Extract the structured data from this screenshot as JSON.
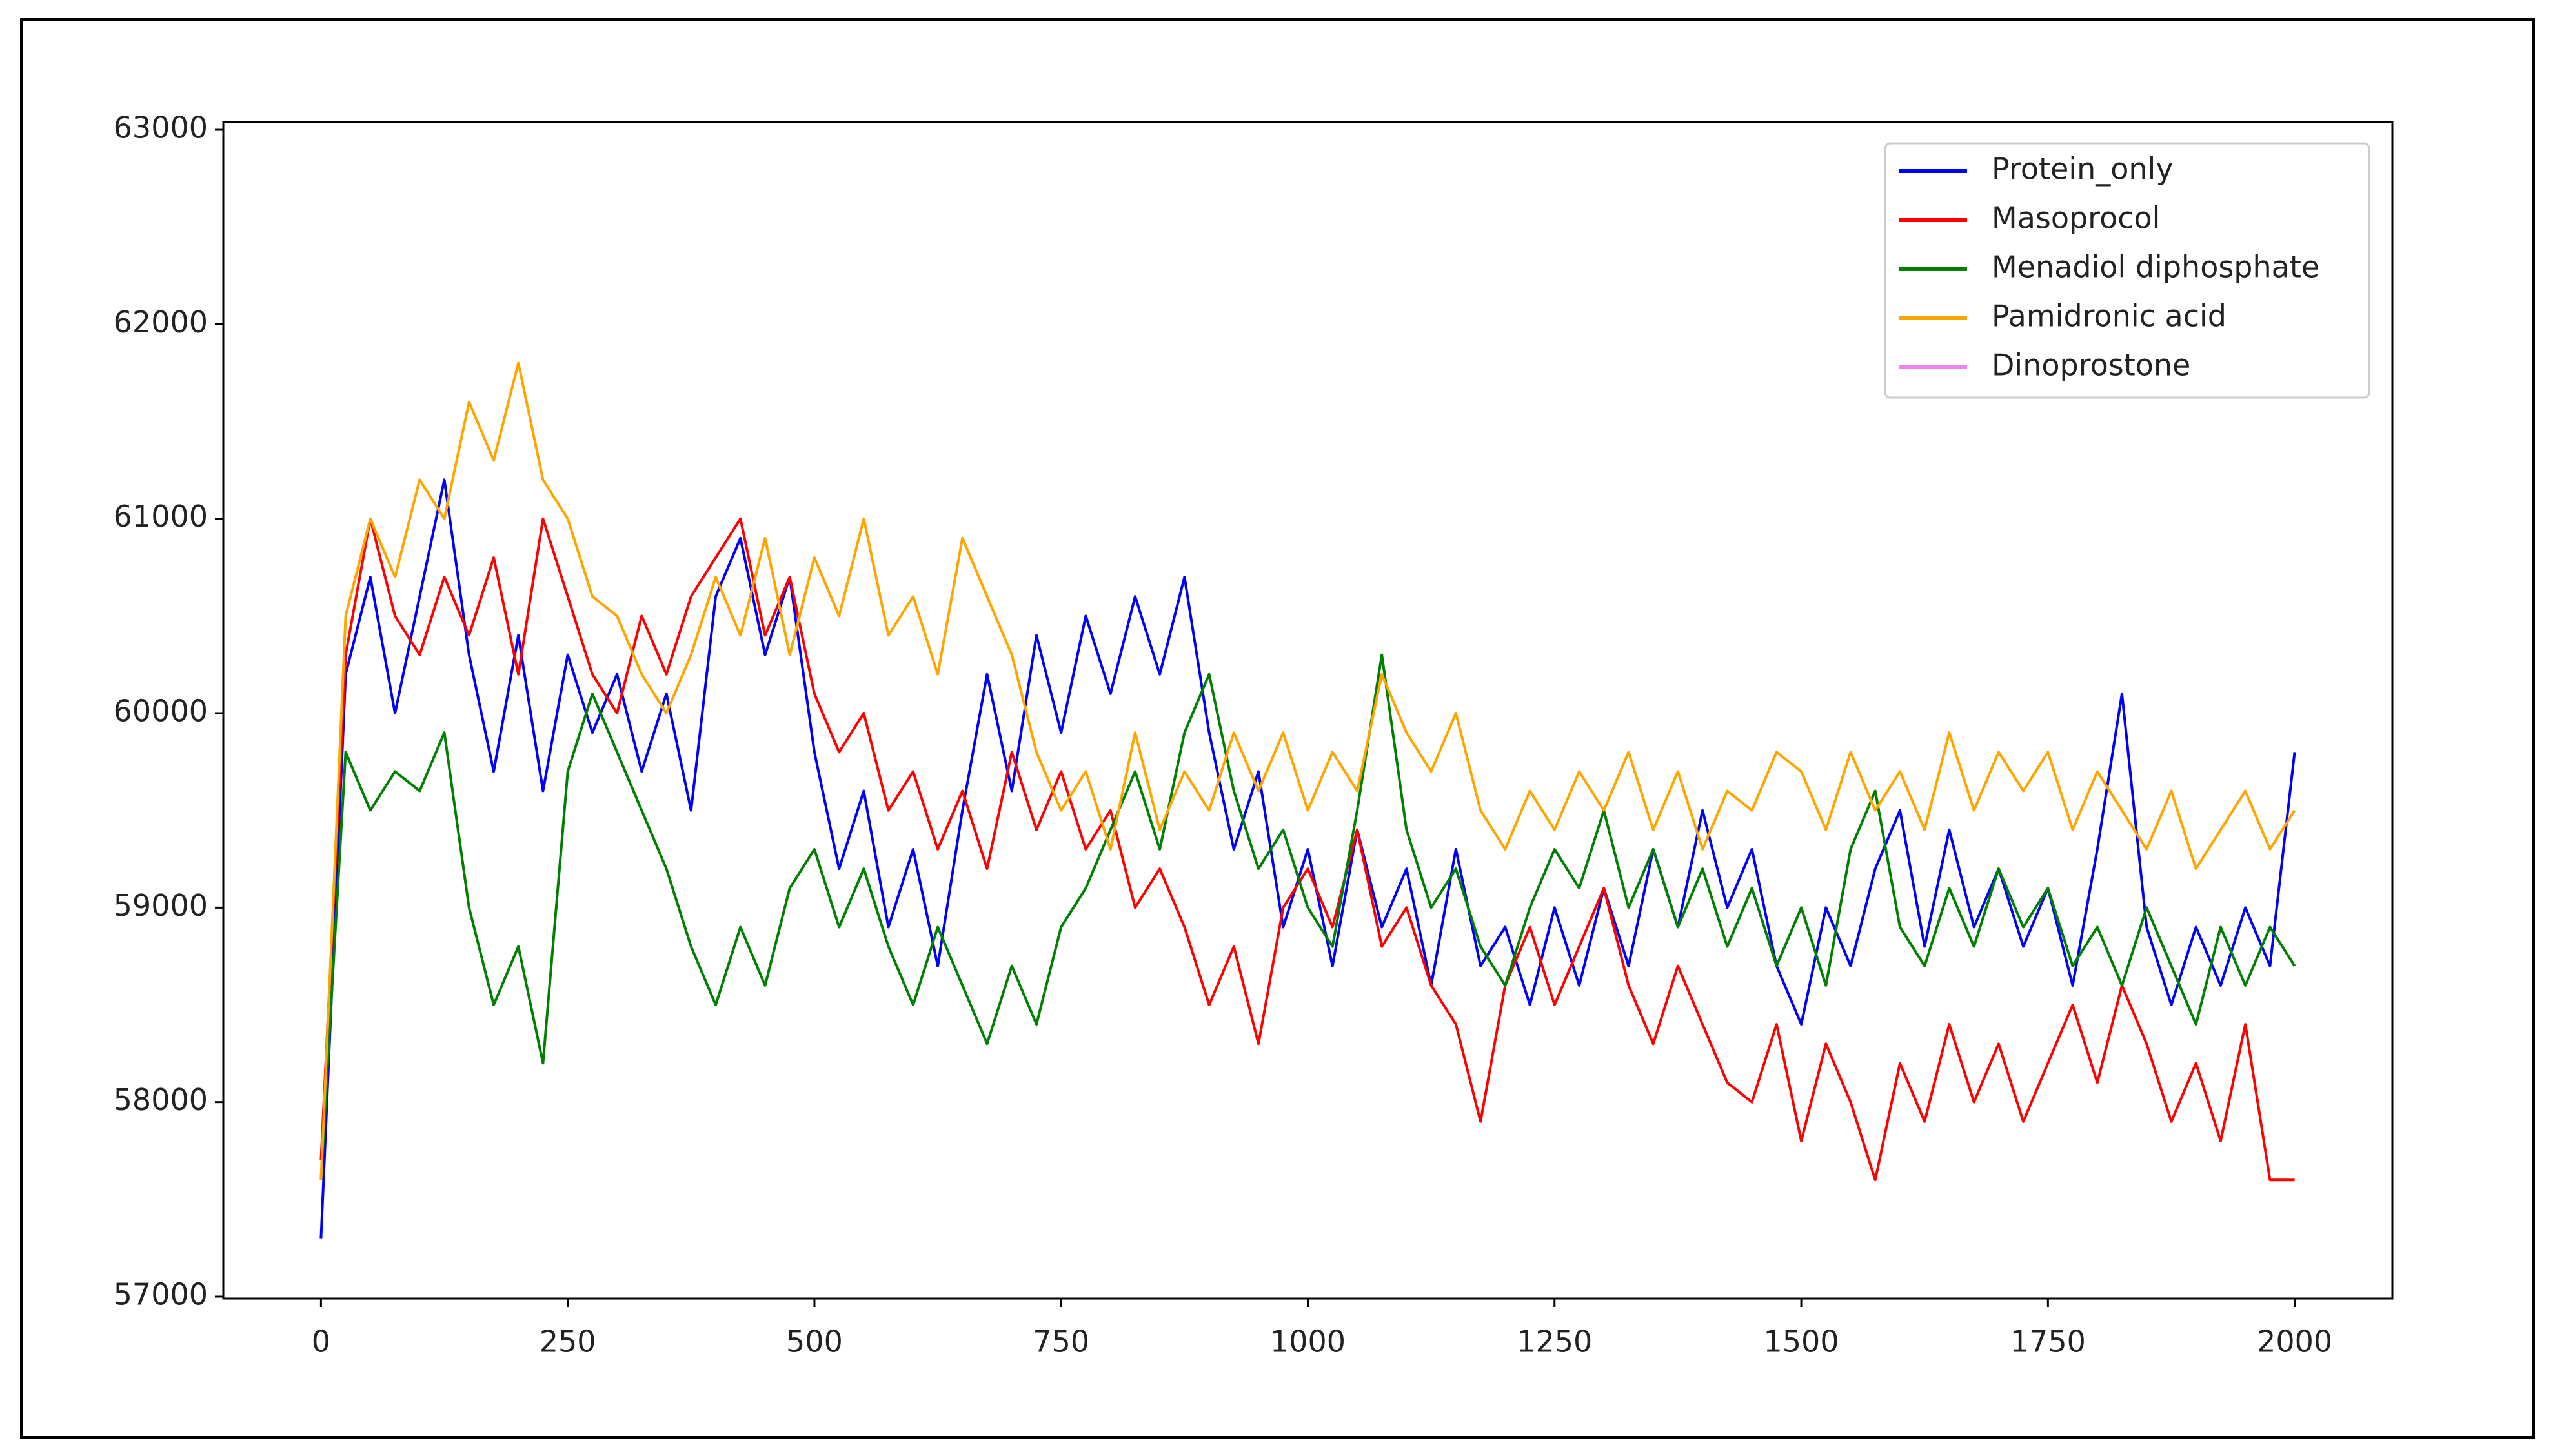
{
  "chart_data": {
    "type": "line",
    "x": [
      0,
      25,
      50,
      75,
      100,
      125,
      150,
      175,
      200,
      225,
      250,
      275,
      300,
      325,
      350,
      375,
      400,
      425,
      450,
      475,
      500,
      525,
      550,
      575,
      600,
      625,
      650,
      675,
      700,
      725,
      750,
      775,
      800,
      825,
      850,
      875,
      900,
      925,
      950,
      975,
      1000,
      1025,
      1050,
      1075,
      1100,
      1125,
      1150,
      1175,
      1200,
      1225,
      1250,
      1275,
      1300,
      1325,
      1350,
      1375,
      1400,
      1425,
      1450,
      1475,
      1500,
      1525,
      1550,
      1575,
      1600,
      1625,
      1650,
      1675,
      1700,
      1725,
      1750,
      1775,
      1800,
      1825,
      1850,
      1875,
      1900,
      1925,
      1950,
      1975,
      2000
    ],
    "series": [
      {
        "name": "Protein_only",
        "color": "#0000ff",
        "values": [
          57300,
          60200,
          60700,
          60000,
          60600,
          61200,
          60300,
          59700,
          60400,
          59600,
          60300,
          59900,
          60200,
          59700,
          60100,
          59500,
          60600,
          60900,
          60300,
          60700,
          59800,
          59200,
          59600,
          58900,
          59300,
          58700,
          59500,
          60200,
          59600,
          60400,
          59900,
          60500,
          60100,
          60600,
          60200,
          60700,
          59900,
          59300,
          59700,
          58900,
          59300,
          58700,
          59400,
          58900,
          59200,
          58600,
          59300,
          58700,
          58900,
          58500,
          59000,
          58600,
          59100,
          58700,
          59300,
          58900,
          59500,
          59000,
          59300,
          58700,
          58400,
          59000,
          58700,
          59200,
          59500,
          58800,
          59400,
          58900,
          59200,
          58800,
          59100,
          58600,
          59300,
          60100,
          58900,
          58500,
          58900,
          58600,
          59000,
          58700,
          59800
        ]
      },
      {
        "name": "Masoprocol",
        "color": "#ff0000",
        "values": [
          57700,
          60300,
          61000,
          60500,
          60300,
          60700,
          60400,
          60800,
          60200,
          61000,
          60600,
          60200,
          60000,
          60500,
          60200,
          60600,
          60800,
          61000,
          60400,
          60700,
          60100,
          59800,
          60000,
          59500,
          59700,
          59300,
          59600,
          59200,
          59800,
          59400,
          59700,
          59300,
          59500,
          59000,
          59200,
          58900,
          58500,
          58800,
          58300,
          59000,
          59200,
          58900,
          59400,
          58800,
          59000,
          58600,
          58400,
          57900,
          58600,
          58900,
          58500,
          58800,
          59100,
          58600,
          58300,
          58700,
          58400,
          58100,
          58000,
          58400,
          57800,
          58300,
          58000,
          57600,
          58200,
          57900,
          58400,
          58000,
          58300,
          57900,
          58200,
          58500,
          58100,
          58600,
          58300,
          57900,
          58200,
          57800,
          58400,
          57600,
          57600
        ]
      },
      {
        "name": "Menadiol diphosphate",
        "color": "#008000",
        "values": [
          57600,
          59800,
          59500,
          59700,
          59600,
          59900,
          59000,
          58500,
          58800,
          58200,
          59700,
          60100,
          59800,
          59500,
          59200,
          58800,
          58500,
          58900,
          58600,
          59100,
          59300,
          58900,
          59200,
          58800,
          58500,
          58900,
          58600,
          58300,
          58700,
          58400,
          58900,
          59100,
          59400,
          59700,
          59300,
          59900,
          60200,
          59600,
          59200,
          59400,
          59000,
          58800,
          59500,
          60300,
          59400,
          59000,
          59200,
          58800,
          58600,
          59000,
          59300,
          59100,
          59500,
          59000,
          59300,
          58900,
          59200,
          58800,
          59100,
          58700,
          59000,
          58600,
          59300,
          59600,
          58900,
          58700,
          59100,
          58800,
          59200,
          58900,
          59100,
          58700,
          58900,
          58600,
          59000,
          58700,
          58400,
          58900,
          58600,
          58900,
          58700
        ]
      },
      {
        "name": "Pamidronic acid",
        "color": "#ffa500",
        "values": [
          57600,
          60500,
          61000,
          60700,
          61200,
          61000,
          61600,
          61300,
          61800,
          61200,
          61000,
          60600,
          60500,
          60200,
          60000,
          60300,
          60700,
          60400,
          60900,
          60300,
          60800,
          60500,
          61000,
          60400,
          60600,
          60200,
          60900,
          60600,
          60300,
          59800,
          59500,
          59700,
          59300,
          59900,
          59400,
          59700,
          59500,
          59900,
          59600,
          59900,
          59500,
          59800,
          59600,
          60200,
          59900,
          59700,
          60000,
          59500,
          59300,
          59600,
          59400,
          59700,
          59500,
          59800,
          59400,
          59700,
          59300,
          59600,
          59500,
          59800,
          59700,
          59400,
          59800,
          59500,
          59700,
          59400,
          59900,
          59500,
          59800,
          59600,
          59800,
          59400,
          59700,
          59500,
          59300,
          59600,
          59200,
          59400,
          59600,
          59300,
          59500
        ]
      },
      {
        "name": "Dinoprostone",
        "color": "#ee82ee",
        "values": [
          null,
          null,
          null,
          null,
          null,
          null,
          null,
          null,
          null,
          null,
          null,
          null,
          null,
          null,
          null,
          null,
          null,
          null,
          null,
          null,
          null,
          null,
          null,
          null,
          null,
          null,
          null,
          null,
          null,
          null,
          null,
          null,
          null,
          null,
          null,
          null,
          null,
          null,
          null,
          null,
          null,
          null,
          null,
          null,
          null,
          null,
          null,
          null,
          null,
          null,
          null,
          null,
          null,
          null,
          null,
          null,
          null,
          null,
          null,
          null,
          null,
          null,
          null,
          null,
          null,
          null,
          null,
          null,
          null,
          null,
          null,
          null,
          null,
          null,
          null,
          null,
          null,
          null,
          null,
          null,
          null
        ]
      }
    ],
    "xlim": [
      -99,
      2099
    ],
    "xticks": [
      0,
      250,
      500,
      750,
      1000,
      1250,
      1500,
      1750,
      2000
    ],
    "ylim": [
      56990,
      63040
    ],
    "yticks": [
      57000,
      58000,
      59000,
      60000,
      61000,
      62000,
      63000
    ],
    "legend": "upper right"
  }
}
